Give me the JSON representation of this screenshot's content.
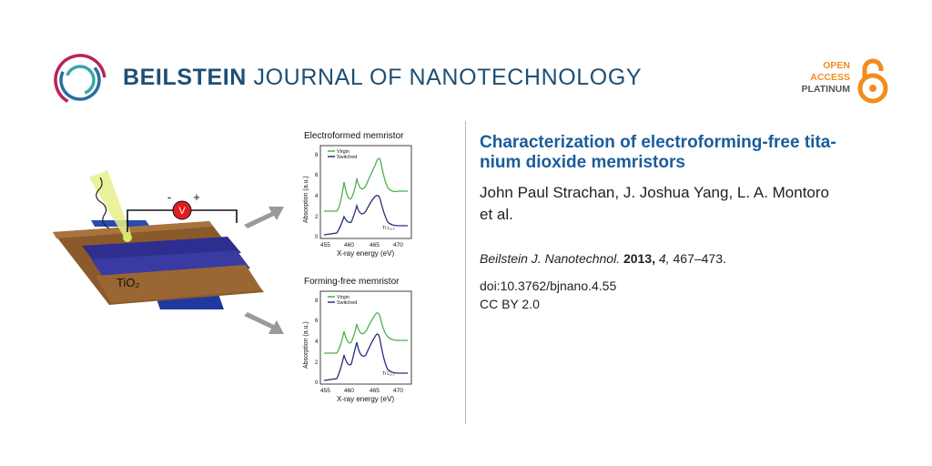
{
  "journal": {
    "name_bold": "BEILSTEIN",
    "name_rest": "JOURNAL OF NANOTECHNOLOGY"
  },
  "open_access": {
    "line1": "OPEN",
    "line2": "ACCESS",
    "line3": "PLATINUM",
    "colors": {
      "orange": "#f28c1e",
      "gray": "#555555"
    }
  },
  "article": {
    "title_line1": "Characterization of electroforming-free tita-",
    "title_line2": "nium dioxide memristors",
    "authors_line1": "John Paul Strachan, J. Joshua Yang, L. A. Montoro",
    "authors_line2": "et al.",
    "citation_journal": "Beilstein J. Nanotechnol.",
    "citation_year": "2013,",
    "citation_volume": "4,",
    "citation_pages": "467–473.",
    "doi": "doi:10.3762/bjnano.4.55",
    "license": "CC BY 2.0"
  },
  "figure": {
    "device_label": "TiO₂",
    "circuit_minus": "-",
    "circuit_plus": "+",
    "voltmeter": "V",
    "top_chart": {
      "title": "Electroformed memristor",
      "legend": [
        "Virgin",
        "Switched"
      ],
      "ylabel": "Absorption (a.u.)",
      "xlabel": "X-ray energy (eV)",
      "yticks": [
        "0",
        "2",
        "4",
        "6",
        "8"
      ],
      "xticks": [
        "455",
        "460",
        "465",
        "470"
      ],
      "annotation": "Ti L₂,₃"
    },
    "bottom_chart": {
      "title": "Forming-free memristor",
      "legend": [
        "Virgin",
        "Switched"
      ],
      "ylabel": "Absorption (a.u.)",
      "xlabel": "X-ray energy (eV)",
      "yticks": [
        "0",
        "2",
        "4",
        "6",
        "8"
      ],
      "xticks": [
        "455",
        "460",
        "465",
        "470"
      ],
      "annotation": "Ti L₂,₃"
    },
    "colors": {
      "virgin": "#4caf50",
      "switched": "#2e2a7a"
    }
  }
}
